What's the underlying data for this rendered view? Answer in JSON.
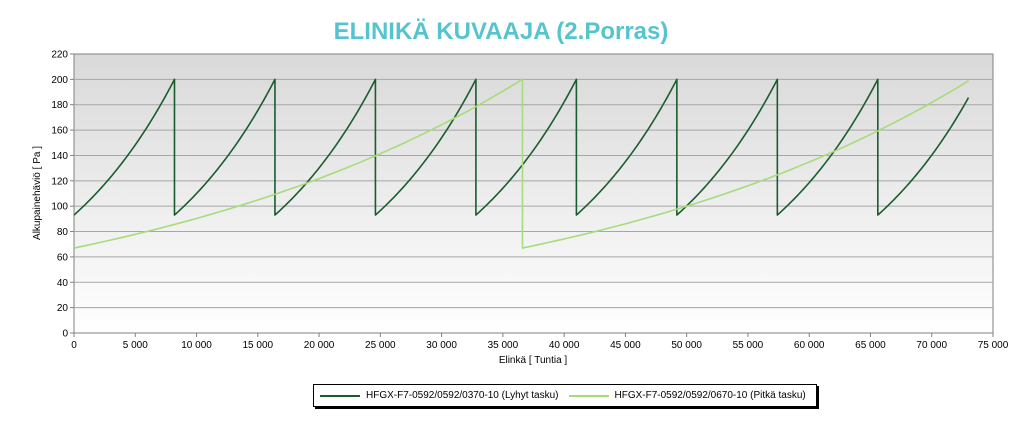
{
  "chart_data": {
    "type": "line",
    "title": "ELINIKÄ KUVAAJA (2.Porras)",
    "xlabel": "Elinkä [ Tuntia ]",
    "ylabel": "Alkupainehäviö [ Pa ]",
    "xlim": [
      0,
      75000
    ],
    "ylim": [
      0,
      220
    ],
    "x_ticks": [
      "0",
      "5 000",
      "10 000",
      "15 000",
      "20 000",
      "25 000",
      "30 000",
      "35 000",
      "40 000",
      "45 000",
      "50 000",
      "55 000",
      "60 000",
      "65 000",
      "70 000",
      "75 000"
    ],
    "y_ticks": [
      "0",
      "20",
      "40",
      "60",
      "80",
      "100",
      "120",
      "140",
      "160",
      "180",
      "200",
      "220"
    ],
    "grid": "horizontal",
    "legend_position": "bottom",
    "series": [
      {
        "name": "HFGX-F7-0592/0592/0370-10 (Lyhyt tasku)",
        "color": "#1a5c2e",
        "cycle_length": 8200,
        "start_value": 93,
        "end_value": 200,
        "x_end": 73000,
        "last_value": 184
      },
      {
        "name": "HFGX-F7-0592/0592/0670-10 (Pitkä tasku)",
        "color": "#a6dc7a",
        "cycle_length": 36600,
        "start_value": 67,
        "end_value": 200,
        "x_end": 73000,
        "last_value": 200
      }
    ]
  }
}
